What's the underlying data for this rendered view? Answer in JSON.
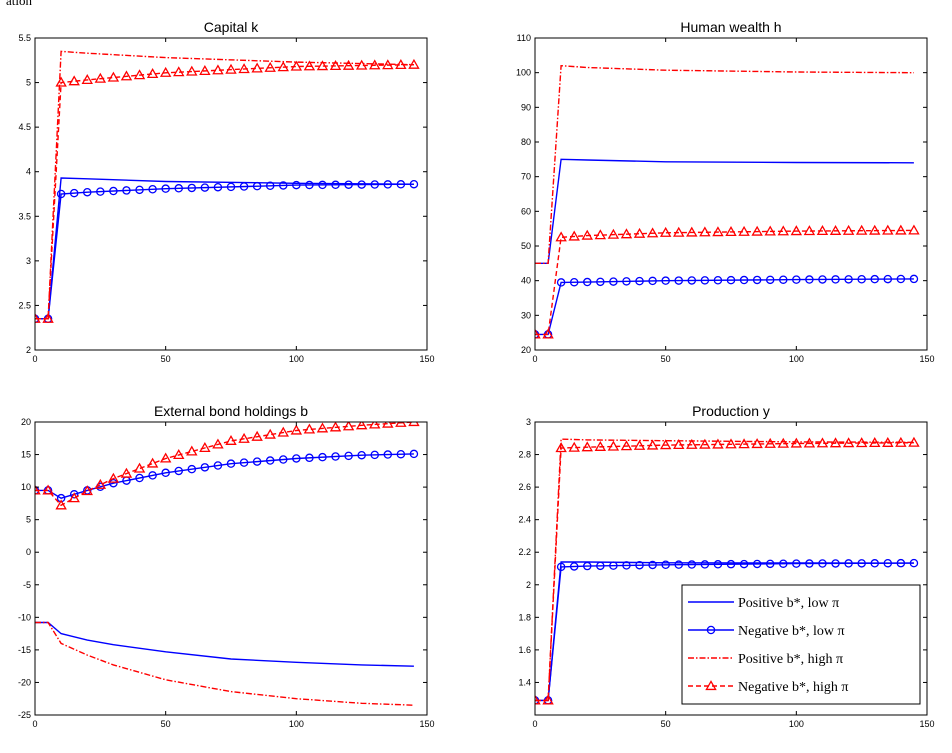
{
  "caption_fragment": "ation",
  "chart_data": [
    {
      "type": "line",
      "title": "Capital k",
      "xlim": [
        0,
        150
      ],
      "ylim": [
        2,
        5.5
      ],
      "xticks": [
        0,
        50,
        100,
        150
      ],
      "yticks": [
        2,
        2.5,
        3,
        3.5,
        4,
        4.5,
        5,
        5.5
      ],
      "series": [
        {
          "style": "pos-low",
          "x": [
            0,
            5,
            10,
            20,
            50,
            100,
            145
          ],
          "y": [
            2.35,
            2.35,
            3.93,
            3.92,
            3.89,
            3.87,
            3.86
          ]
        },
        {
          "style": "neg-low",
          "x": [
            0,
            5,
            10,
            20,
            50,
            100,
            145
          ],
          "y": [
            2.35,
            2.35,
            3.75,
            3.77,
            3.81,
            3.85,
            3.86
          ]
        },
        {
          "style": "pos-high",
          "x": [
            0,
            5,
            10,
            20,
            50,
            100,
            145
          ],
          "y": [
            2.35,
            2.35,
            5.35,
            5.33,
            5.28,
            5.23,
            5.2
          ]
        },
        {
          "style": "neg-high",
          "x": [
            0,
            5,
            10,
            20,
            50,
            100,
            145
          ],
          "y": [
            2.35,
            2.35,
            5.0,
            5.03,
            5.11,
            5.18,
            5.2
          ]
        }
      ]
    },
    {
      "type": "line",
      "title": "Human wealth h",
      "xlim": [
        0,
        150
      ],
      "ylim": [
        20,
        110
      ],
      "xticks": [
        0,
        50,
        100,
        150
      ],
      "yticks": [
        20,
        30,
        40,
        50,
        60,
        70,
        80,
        90,
        100,
        110
      ],
      "series": [
        {
          "style": "pos-low",
          "x": [
            0,
            5,
            10,
            20,
            50,
            100,
            145
          ],
          "y": [
            45,
            45,
            75,
            74.8,
            74.3,
            74.1,
            74
          ]
        },
        {
          "style": "neg-low",
          "x": [
            0,
            5,
            10,
            20,
            50,
            100,
            145
          ],
          "y": [
            24.5,
            24.5,
            39.5,
            39.6,
            40,
            40.3,
            40.5
          ]
        },
        {
          "style": "pos-high",
          "x": [
            0,
            5,
            10,
            20,
            50,
            100,
            145
          ],
          "y": [
            45,
            45,
            102,
            101.5,
            100.7,
            100.2,
            100
          ]
        },
        {
          "style": "neg-high",
          "x": [
            0,
            5,
            10,
            20,
            50,
            100,
            145
          ],
          "y": [
            24.5,
            24.5,
            52.5,
            53,
            53.8,
            54.3,
            54.5
          ]
        }
      ]
    },
    {
      "type": "line",
      "title": "External bond holdings b",
      "xlim": [
        0,
        150
      ],
      "ylim": [
        -25,
        20
      ],
      "xticks": [
        0,
        50,
        100,
        150
      ],
      "yticks": [
        -25,
        -20,
        -15,
        -10,
        -5,
        0,
        5,
        10,
        15,
        20
      ],
      "series": [
        {
          "style": "pos-low",
          "x": [
            0,
            5,
            10,
            20,
            30,
            50,
            75,
            100,
            125,
            145
          ],
          "y": [
            -10.8,
            -10.8,
            -12.5,
            -13.5,
            -14.2,
            -15.3,
            -16.4,
            -16.9,
            -17.3,
            -17.5
          ]
        },
        {
          "style": "neg-low",
          "x": [
            0,
            5,
            10,
            20,
            30,
            50,
            75,
            100,
            125,
            145
          ],
          "y": [
            9.5,
            9.5,
            8.3,
            9.5,
            10.6,
            12.2,
            13.6,
            14.4,
            14.9,
            15.1
          ]
        },
        {
          "style": "pos-high",
          "x": [
            0,
            5,
            10,
            20,
            30,
            50,
            75,
            100,
            125,
            145
          ],
          "y": [
            -10.8,
            -10.8,
            -14.0,
            -15.8,
            -17.3,
            -19.6,
            -21.4,
            -22.5,
            -23.2,
            -23.5
          ]
        },
        {
          "style": "neg-high",
          "x": [
            0,
            5,
            10,
            20,
            30,
            50,
            75,
            100,
            125,
            145
          ],
          "y": [
            9.5,
            9.5,
            7.2,
            9.4,
            11.3,
            14.4,
            17.1,
            18.7,
            19.5,
            20.0
          ]
        }
      ]
    },
    {
      "type": "line",
      "title": "Production y",
      "xlim": [
        0,
        150
      ],
      "ylim": [
        1.2,
        3
      ],
      "xticks": [
        0,
        50,
        100,
        150
      ],
      "yticks": [
        1.4,
        1.6,
        1.8,
        2,
        2.2,
        2.4,
        2.6,
        2.8,
        3
      ],
      "series": [
        {
          "style": "pos-low",
          "x": [
            0,
            5,
            10,
            20,
            50,
            100,
            145
          ],
          "y": [
            1.29,
            1.29,
            2.14,
            2.14,
            2.135,
            2.134,
            2.133
          ]
        },
        {
          "style": "neg-low",
          "x": [
            0,
            5,
            10,
            20,
            50,
            100,
            145
          ],
          "y": [
            1.29,
            1.29,
            2.11,
            2.115,
            2.123,
            2.13,
            2.133
          ]
        },
        {
          "style": "pos-high",
          "x": [
            0,
            5,
            10,
            20,
            50,
            100,
            145
          ],
          "y": [
            1.29,
            1.29,
            2.895,
            2.89,
            2.885,
            2.878,
            2.875
          ]
        },
        {
          "style": "neg-high",
          "x": [
            0,
            5,
            10,
            20,
            50,
            100,
            145
          ],
          "y": [
            1.29,
            1.29,
            2.84,
            2.845,
            2.858,
            2.868,
            2.873
          ]
        }
      ],
      "legend_position": "bottom-right"
    }
  ],
  "legend": {
    "items": [
      {
        "style": "pos-low",
        "label": "Positive b*, low π"
      },
      {
        "style": "neg-low",
        "label": "Negative b*, low π"
      },
      {
        "style": "pos-high",
        "label": "Positive b*, high π"
      },
      {
        "style": "neg-high",
        "label": "Negative b*, high π"
      }
    ]
  },
  "colors": {
    "blue": "#0000ff",
    "red": "#ff0000",
    "axis": "#000000"
  }
}
